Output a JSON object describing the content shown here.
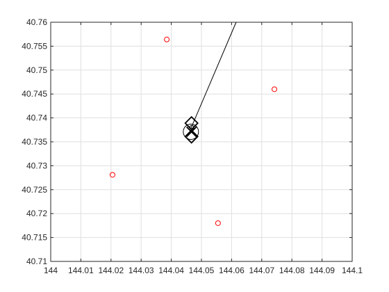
{
  "chart_data": {
    "type": "scatter",
    "xlim": [
      144,
      144.1
    ],
    "ylim": [
      40.71,
      40.76
    ],
    "x_ticks": [
      144,
      144.01,
      144.02,
      144.03,
      144.04,
      144.05,
      144.06,
      144.07,
      144.08,
      144.09,
      144.1
    ],
    "x_tick_labels": [
      "144",
      "144.01",
      "144.02",
      "144.03",
      "144.04",
      "144.05",
      "144.06",
      "144.07",
      "144.08",
      "144.09",
      "144.1"
    ],
    "y_ticks": [
      40.71,
      40.715,
      40.72,
      40.725,
      40.73,
      40.735,
      40.74,
      40.745,
      40.75,
      40.755,
      40.76
    ],
    "y_tick_labels": [
      "40.71",
      "40.715",
      "40.72",
      "40.725",
      "40.73",
      "40.735",
      "40.74",
      "40.745",
      "40.75",
      "40.755",
      "40.76"
    ],
    "grid": true,
    "title": "",
    "xlabel": "",
    "ylabel": "",
    "colors": {
      "points": "#ff0000",
      "line": "#000000",
      "grid": "#dfdfdf",
      "axes": "#262626"
    },
    "points": [
      {
        "x": 144.0385,
        "y": 40.7564
      },
      {
        "x": 144.0742,
        "y": 40.746
      },
      {
        "x": 144.0205,
        "y": 40.7281
      },
      {
        "x": 144.0555,
        "y": 40.718
      }
    ],
    "line": [
      {
        "x": 144.0465,
        "y": 40.7378
      },
      {
        "x": 144.0615,
        "y": 40.76
      }
    ],
    "big_circle": {
      "x": 144.0465,
      "y": 40.7371
    },
    "diamonds": [
      {
        "x": 144.0467,
        "y": 40.7389
      },
      {
        "x": 144.0467,
        "y": 40.7361
      }
    ],
    "cross": {
      "x": 144.0467,
      "y": 40.7371
    },
    "small_marker": {
      "x": 144.0468,
      "y": 40.738
    }
  }
}
